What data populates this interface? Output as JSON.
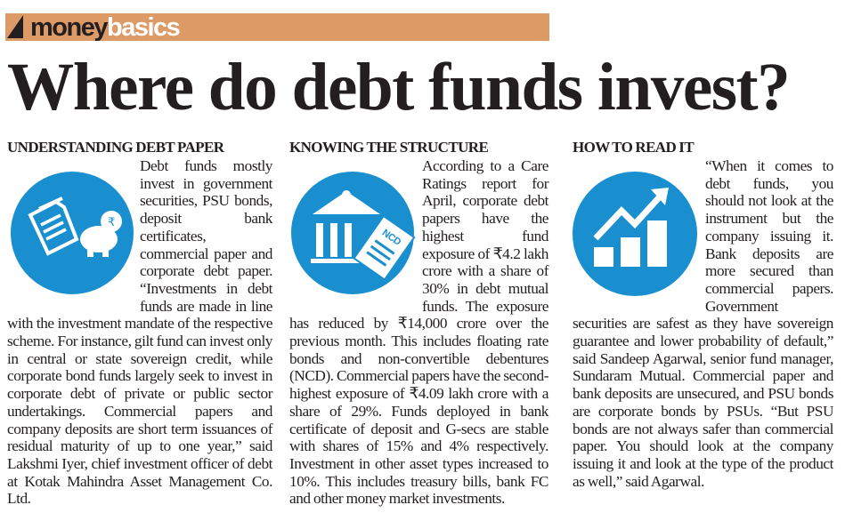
{
  "banner": {
    "brand_dark": "money",
    "brand_light": "basics",
    "color": "#dc9a66"
  },
  "headline": "Where do debt funds invest?",
  "accent_color": "#1a8fcf",
  "columns": [
    {
      "heading": "UNDERSTANDING DEBT PAPER",
      "icon": "documents-piggy-bank-rupee-icon",
      "body": "Debt funds mostly invest in government securities, PSU bonds, deposit bank certificates, commercial paper and corporate debt paper. “Investments in debt funds are made in line with the investment mandate of the respective scheme. For instance, gilt fund can invest only in central or state sovereign credit, while corporate bond funds largely seek to invest in corporate debt of private or public sector undertakings. Commercial papers and company deposits are short term issuances of residual maturity of up to one year,” said Lakshmi Iyer, chief investment officer of debt at Kotak Mahindra Asset Management Co. Ltd."
    },
    {
      "heading": "KNOWING THE STRUCTURE",
      "icon": "bank-ncd-document-icon",
      "icon_label": "NCD",
      "body": "According to a Care Ratings report for April, corporate debt papers have the highest fund exposure of ₹4.2 lakh crore with a share of 30% in debt mutual funds. The exposure has reduced by ₹14,000 crore over the previous month. This includes floating rate bonds and non-convertible debentures (NCD). Commercial papers have the second-highest exposure of ₹4.09 lakh crore with a share of 29%. Funds deployed in bank certificate of deposit and G-secs are stable with shares of 15% and 4% respectively. Investment in other asset types increased to 10%. This includes treasury bills, bank FC and other money market investments."
    },
    {
      "heading": "HOW TO READ IT",
      "icon": "growth-bar-chart-arrow-icon",
      "body": "“When it comes to debt funds, you should not look at the instrument but the company issuing it. Bank deposits are more secured than commercial papers. Government securities are safest as they have sovereign guarantee and lower probability of default,” said Sandeep Agarwal, senior fund manager, Sundaram Mutual. Commercial paper and bank deposits are unsecured, and PSU bonds are corporate bonds by PSUs. “But PSU bonds are not always safer than commercial paper. You should look at the company issuing it and look at the type of the product as well,” said Agarwal."
    }
  ]
}
